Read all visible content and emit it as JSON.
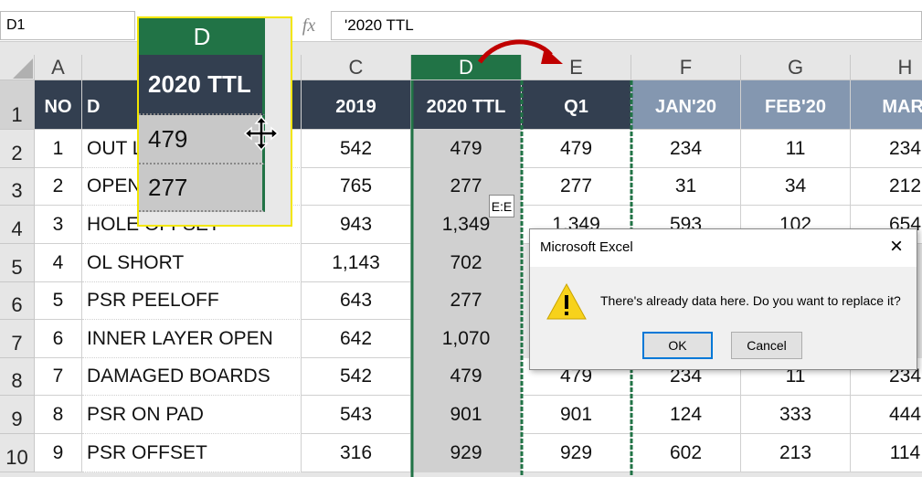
{
  "toolbar": {
    "name_box": "D1",
    "fx": "fx",
    "formula": "'2020 TTL"
  },
  "columns": [
    "A",
    null,
    "C",
    "D",
    "E",
    "F",
    "G",
    "H"
  ],
  "row_numbers": [
    "1",
    "2",
    "3",
    "4",
    "5",
    "6",
    "7",
    "8",
    "9",
    "10"
  ],
  "rows": [
    [
      "NO",
      "D",
      "2019",
      "2020 TTL",
      "Q1",
      "JAN'20",
      "FEB'20",
      "MAR'"
    ],
    [
      "1",
      "OUT L",
      "542",
      "479",
      "479",
      "234",
      "11",
      "234"
    ],
    [
      "2",
      "OPEN",
      "765",
      "277",
      "277",
      "31",
      "34",
      "212"
    ],
    [
      "3",
      "HOLE OFFSET",
      "943",
      "1,349",
      "1,349",
      "593",
      "102",
      "654"
    ],
    [
      "4",
      "OL SHORT",
      "1,143",
      "702"
    ],
    [
      "5",
      "PSR PEELOFF",
      "643",
      "277"
    ],
    [
      "6",
      "INNER LAYER OPEN",
      "642",
      "1,070"
    ],
    [
      "7",
      "DAMAGED BOARDS",
      "542",
      "479",
      "479",
      "234",
      "11",
      "234"
    ],
    [
      "8",
      "PSR ON PAD",
      "543",
      "901",
      "901",
      "124",
      "333",
      "444"
    ],
    [
      "9",
      "PSR OFFSET",
      "316",
      "929",
      "929",
      "602",
      "213",
      "114"
    ]
  ],
  "zoom": {
    "column": "D",
    "cells": [
      "2020 TTL",
      "479",
      "277"
    ]
  },
  "tooltip": "E:E",
  "dialog": {
    "title": "Microsoft Excel",
    "close": "×",
    "message": "There's already data here. Do you want to replace it?",
    "buttons": [
      "OK",
      "Cancel"
    ]
  }
}
